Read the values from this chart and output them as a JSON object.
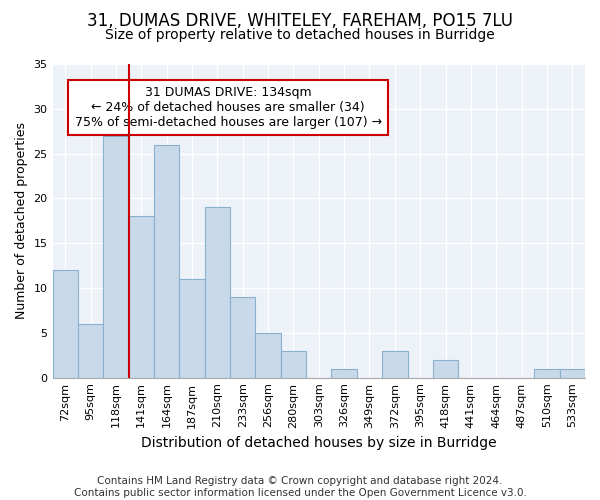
{
  "title1": "31, DUMAS DRIVE, WHITELEY, FAREHAM, PO15 7LU",
  "title2": "Size of property relative to detached houses in Burridge",
  "xlabel": "Distribution of detached houses by size in Burridge",
  "ylabel": "Number of detached properties",
  "categories": [
    "72sqm",
    "95sqm",
    "118sqm",
    "141sqm",
    "164sqm",
    "187sqm",
    "210sqm",
    "233sqm",
    "256sqm",
    "280sqm",
    "303sqm",
    "326sqm",
    "349sqm",
    "372sqm",
    "395sqm",
    "418sqm",
    "441sqm",
    "464sqm",
    "487sqm",
    "510sqm",
    "533sqm"
  ],
  "values": [
    12,
    6,
    27,
    18,
    26,
    11,
    19,
    9,
    5,
    3,
    0,
    1,
    0,
    3,
    0,
    2,
    0,
    0,
    0,
    1,
    1
  ],
  "bar_color": "#c8d9ea",
  "bar_edgecolor": "#89b0cc",
  "vline_x": 2.5,
  "vline_color": "#cc0000",
  "annotation_text": "31 DUMAS DRIVE: 134sqm\n← 24% of detached houses are smaller (34)\n75% of semi-detached houses are larger (107) →",
  "annotation_box_color": "#ffffff",
  "annotation_box_edgecolor": "#cc0000",
  "ylim": [
    0,
    35
  ],
  "yticks": [
    0,
    5,
    10,
    15,
    20,
    25,
    30,
    35
  ],
  "footer": "Contains HM Land Registry data © Crown copyright and database right 2024.\nContains public sector information licensed under the Open Government Licence v3.0.",
  "bg_color": "#ffffff",
  "plot_bg_color": "#edf2f8",
  "title1_fontsize": 12,
  "title2_fontsize": 10,
  "tick_fontsize": 8,
  "ylabel_fontsize": 9,
  "xlabel_fontsize": 10,
  "footer_fontsize": 7.5,
  "annot_fontsize": 9
}
